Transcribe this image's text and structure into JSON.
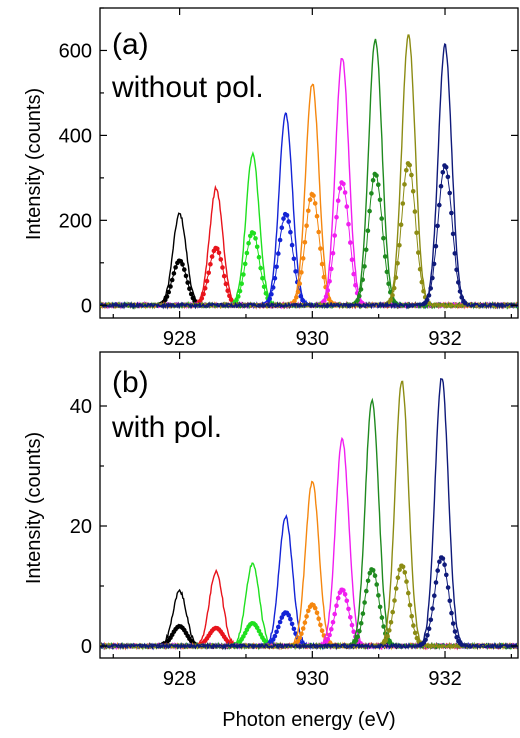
{
  "colors": [
    "#000000",
    "#e8141c",
    "#1fe01f",
    "#1424d6",
    "#f5870f",
    "#f01ef0",
    "#1f8a1f",
    "#8c8c14",
    "#0f1a7a"
  ],
  "chart_data": [
    {
      "type": "line",
      "panel_label": "(a)",
      "annotation": "without pol.",
      "ylabel": "Intensity (counts)",
      "xlabel": "",
      "xlim": [
        926.8,
        933.1
      ],
      "ylim": [
        -30,
        700
      ],
      "xticks": [
        928,
        930,
        932
      ],
      "yticks": [
        0,
        200,
        400,
        600
      ],
      "xtick_labels": [
        "928",
        "930",
        "932"
      ],
      "ytick_labels": [
        "0",
        "200",
        "400",
        "600"
      ],
      "peak_width": 0.1,
      "series": [
        {
          "center": 928.0,
          "line_peak": 215,
          "dots_peak": 105
        },
        {
          "center": 928.55,
          "line_peak": 275,
          "dots_peak": 135
        },
        {
          "center": 929.1,
          "line_peak": 355,
          "dots_peak": 172
        },
        {
          "center": 929.6,
          "line_peak": 450,
          "dots_peak": 215
        },
        {
          "center": 930.0,
          "line_peak": 522,
          "dots_peak": 262
        },
        {
          "center": 930.45,
          "line_peak": 585,
          "dots_peak": 290
        },
        {
          "center": 930.95,
          "line_peak": 627,
          "dots_peak": 310
        },
        {
          "center": 931.45,
          "line_peak": 635,
          "dots_peak": 335
        },
        {
          "center": 932.0,
          "line_peak": 612,
          "dots_peak": 330
        }
      ]
    },
    {
      "type": "line",
      "panel_label": "(b)",
      "annotation": "with pol.",
      "ylabel": "Intensity (counts)",
      "xlabel": "Photon energy (eV)",
      "xlim": [
        926.8,
        933.1
      ],
      "ylim": [
        -2,
        49
      ],
      "xticks": [
        928,
        930,
        932
      ],
      "yticks": [
        0,
        20,
        40
      ],
      "xtick_labels": [
        "928",
        "930",
        "932"
      ],
      "ytick_labels": [
        "0",
        "20",
        "40"
      ],
      "peak_width": 0.1,
      "series": [
        {
          "center": 928.0,
          "line_peak": 9.2,
          "dots_peak": 3.3
        },
        {
          "center": 928.55,
          "line_peak": 12.5,
          "dots_peak": 3.0
        },
        {
          "center": 929.1,
          "line_peak": 13.8,
          "dots_peak": 3.8
        },
        {
          "center": 929.6,
          "line_peak": 21.5,
          "dots_peak": 5.6
        },
        {
          "center": 930.0,
          "line_peak": 27.3,
          "dots_peak": 6.9
        },
        {
          "center": 930.45,
          "line_peak": 34.5,
          "dots_peak": 9.4
        },
        {
          "center": 930.9,
          "line_peak": 41.0,
          "dots_peak": 12.8
        },
        {
          "center": 931.35,
          "line_peak": 44.2,
          "dots_peak": 13.4
        },
        {
          "center": 931.95,
          "line_peak": 44.8,
          "dots_peak": 14.8
        }
      ]
    }
  ]
}
